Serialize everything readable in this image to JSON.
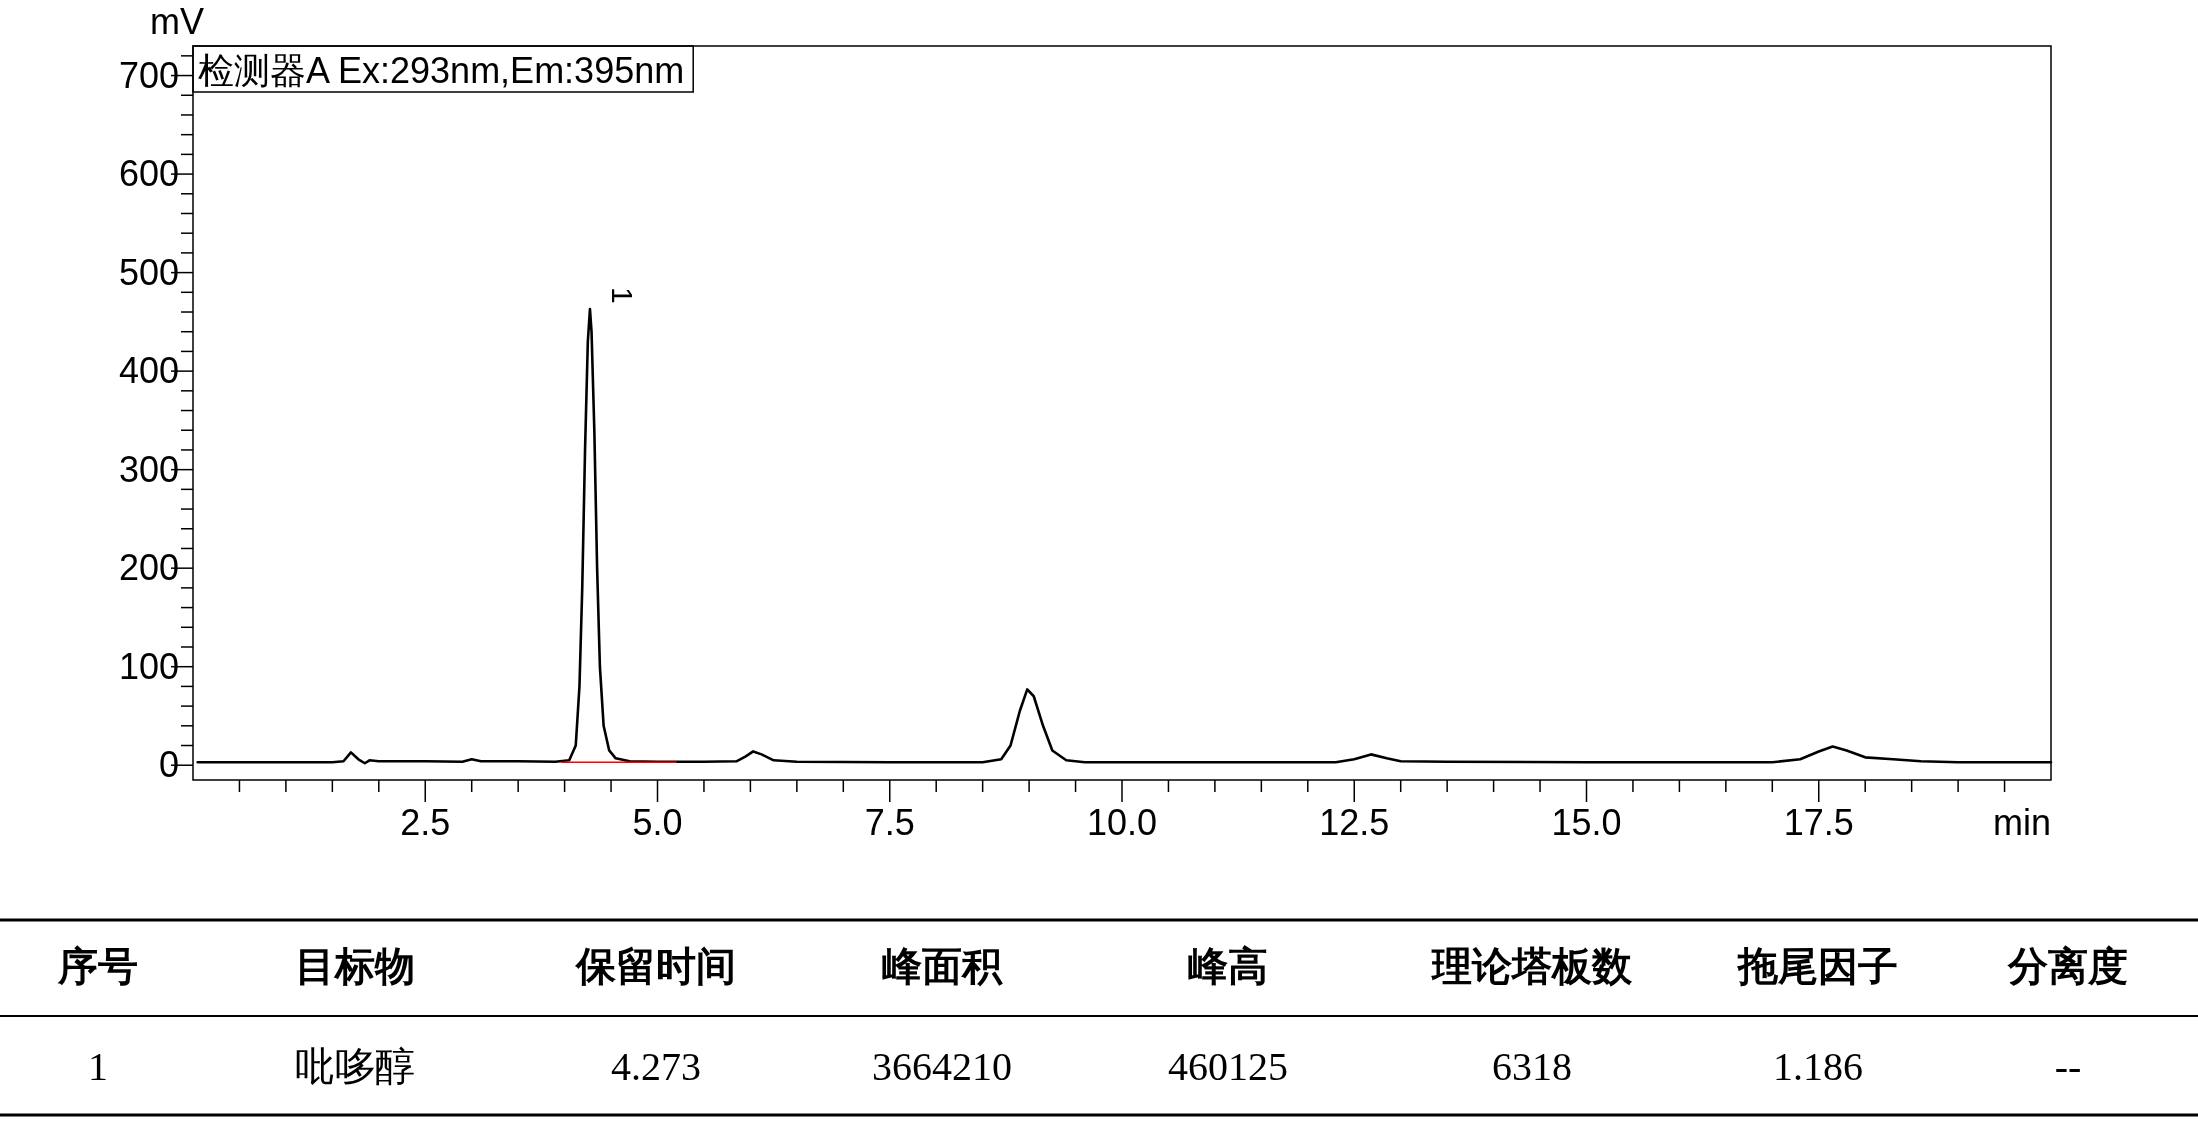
{
  "chart_data": {
    "type": "line",
    "title": "检测器A Ex:293nm,Em:395nm",
    "xlabel": "min",
    "ylabel": "mV",
    "xlim": [
      0,
      20
    ],
    "ylim": [
      -15,
      730
    ],
    "xticks": [
      {
        "value": 0.5,
        "label": null
      },
      {
        "value": 1.0,
        "label": null
      },
      {
        "value": 1.5,
        "label": null
      },
      {
        "value": 2.0,
        "label": null
      },
      {
        "value": 2.5,
        "label": "2.5"
      },
      {
        "value": 3.0,
        "label": null
      },
      {
        "value": 3.5,
        "label": null
      },
      {
        "value": 4.0,
        "label": null
      },
      {
        "value": 4.5,
        "label": null
      },
      {
        "value": 5.0,
        "label": "5.0"
      },
      {
        "value": 5.5,
        "label": null
      },
      {
        "value": 6.0,
        "label": null
      },
      {
        "value": 6.5,
        "label": null
      },
      {
        "value": 7.0,
        "label": null
      },
      {
        "value": 7.5,
        "label": "7.5"
      },
      {
        "value": 8.0,
        "label": null
      },
      {
        "value": 8.5,
        "label": null
      },
      {
        "value": 9.0,
        "label": null
      },
      {
        "value": 9.5,
        "label": null
      },
      {
        "value": 10.0,
        "label": "10.0"
      },
      {
        "value": 10.5,
        "label": null
      },
      {
        "value": 11.0,
        "label": null
      },
      {
        "value": 11.5,
        "label": null
      },
      {
        "value": 12.0,
        "label": null
      },
      {
        "value": 12.5,
        "label": "12.5"
      },
      {
        "value": 13.0,
        "label": null
      },
      {
        "value": 13.5,
        "label": null
      },
      {
        "value": 14.0,
        "label": null
      },
      {
        "value": 14.5,
        "label": null
      },
      {
        "value": 15.0,
        "label": "15.0"
      },
      {
        "value": 15.5,
        "label": null
      },
      {
        "value": 16.0,
        "label": null
      },
      {
        "value": 16.5,
        "label": null
      },
      {
        "value": 17.0,
        "label": null
      },
      {
        "value": 17.5,
        "label": "17.5"
      },
      {
        "value": 18.0,
        "label": null
      },
      {
        "value": 18.5,
        "label": null
      },
      {
        "value": 19.0,
        "label": null
      },
      {
        "value": 19.5,
        "label": null
      }
    ],
    "yticks": [
      0,
      {
        "value": 20,
        "label": null
      },
      {
        "value": 40,
        "label": null
      },
      {
        "value": 60,
        "label": null
      },
      {
        "value": 80,
        "label": null
      },
      100,
      {
        "value": 120,
        "label": null
      },
      {
        "value": 140,
        "label": null
      },
      {
        "value": 160,
        "label": null
      },
      {
        "value": 180,
        "label": null
      },
      200,
      {
        "value": 220,
        "label": null
      },
      {
        "value": 240,
        "label": null
      },
      {
        "value": 260,
        "label": null
      },
      {
        "value": 280,
        "label": null
      },
      300,
      {
        "value": 320,
        "label": null
      },
      {
        "value": 340,
        "label": null
      },
      {
        "value": 360,
        "label": null
      },
      {
        "value": 380,
        "label": null
      },
      400,
      {
        "value": 420,
        "label": null
      },
      {
        "value": 440,
        "label": null
      },
      {
        "value": 460,
        "label": null
      },
      {
        "value": 480,
        "label": null
      },
      500,
      {
        "value": 520,
        "label": null
      },
      {
        "value": 540,
        "label": null
      },
      {
        "value": 560,
        "label": null
      },
      {
        "value": 580,
        "label": null
      },
      600,
      {
        "value": 620,
        "label": null
      },
      {
        "value": 640,
        "label": null
      },
      {
        "value": 660,
        "label": null
      },
      {
        "value": 680,
        "label": null
      },
      700,
      {
        "value": 720,
        "label": null
      }
    ],
    "series": [
      {
        "color": "#000000",
        "x": [
          0.05,
          1.5,
          1.62,
          1.7,
          1.78,
          1.85,
          1.9,
          2.0,
          2.5,
          2.9,
          3.0,
          3.1,
          3.5,
          3.9,
          4.05,
          4.12,
          4.16,
          4.19,
          4.22,
          4.25,
          4.273,
          4.29,
          4.32,
          4.35,
          4.38,
          4.42,
          4.48,
          4.55,
          4.7,
          5.0,
          5.5,
          5.85,
          5.95,
          6.03,
          6.12,
          6.25,
          6.5,
          7.5,
          8.5,
          8.7,
          8.8,
          8.9,
          8.98,
          9.05,
          9.15,
          9.25,
          9.4,
          9.6,
          11.0,
          12.3,
          12.5,
          12.68,
          12.85,
          13.0,
          13.5,
          15.0,
          17.0,
          17.3,
          17.5,
          17.65,
          17.8,
          18.0,
          18.3,
          18.6,
          19.0,
          20.0
        ],
        "values": [
          3,
          3,
          4,
          13,
          6,
          2,
          5,
          4,
          4,
          3.5,
          6,
          4,
          4,
          3.5,
          5,
          20,
          80,
          180,
          320,
          430,
          463,
          440,
          340,
          200,
          100,
          40,
          15,
          7,
          4,
          3.5,
          3.5,
          4,
          9,
          14,
          11,
          5,
          3.5,
          3,
          3,
          6,
          20,
          55,
          77,
          70,
          40,
          15,
          5,
          3,
          3,
          3,
          6,
          11,
          7,
          4,
          3.5,
          3,
          3,
          6,
          14,
          19,
          15,
          8,
          6,
          4,
          3,
          3
        ]
      },
      {
        "color": "#ff0000",
        "x": [
          3.97,
          5.2
        ],
        "values": [
          3,
          3
        ]
      }
    ],
    "annotations": [
      {
        "text": "1",
        "x": 4.273,
        "y": 463
      },
      "序号",
      "目标物",
      "保留时间",
      "峰面积",
      "峰高",
      "理论塔板数",
      "拖尾因子",
      "分离度",
      "1",
      "吡哆醇",
      "4.273",
      "3664210",
      "460125",
      "6318",
      "1.186",
      "--"
    ]
  }
}
